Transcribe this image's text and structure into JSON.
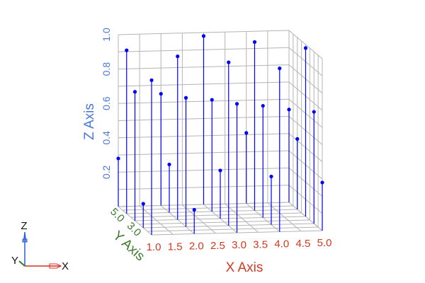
{
  "chart_data": {
    "type": "scatter3d",
    "style": "points with drop lines to floor",
    "xlabel": "X Axis",
    "ylabel": "Y Axis",
    "zlabel": "Z Axis",
    "xlim": [
      1,
      5
    ],
    "ylim": [
      1,
      5
    ],
    "zlim": [
      0,
      1
    ],
    "x_ticks": [
      "1.0",
      "1.5",
      "2.0",
      "2.5",
      "3.0",
      "3.5",
      "4.0",
      "4.5",
      "5.0"
    ],
    "y_ticks": [
      "5.0",
      "3.0"
    ],
    "z_ticks": [
      "0.2",
      "0.4",
      "0.6",
      "0.8",
      "1.0"
    ],
    "grid": true,
    "point_color": "#0000ff",
    "axis_colors": {
      "x": "#d03a22",
      "y": "#3a7a2a",
      "z": "#4a78d8"
    },
    "points": [
      {
        "x": 1,
        "y": 5,
        "z": 0.28
      },
      {
        "x": 1,
        "y": 4,
        "z": 0.95
      },
      {
        "x": 1,
        "y": 3,
        "z": 0.75
      },
      {
        "x": 1,
        "y": 2,
        "z": 0.14
      },
      {
        "x": 1,
        "y": 1,
        "z": 0.9
      },
      {
        "x": 2,
        "y": 5,
        "z": 0.65
      },
      {
        "x": 2,
        "y": 4,
        "z": 0.28
      },
      {
        "x": 2,
        "y": 3,
        "z": 0.95
      },
      {
        "x": 2,
        "y": 2,
        "z": 0.75
      },
      {
        "x": 2,
        "y": 1,
        "z": 0.14
      },
      {
        "x": 3,
        "y": 5,
        "z": 0.98
      },
      {
        "x": 3,
        "y": 4,
        "z": 0.65
      },
      {
        "x": 3,
        "y": 3,
        "z": 0.28
      },
      {
        "x": 3,
        "y": 2,
        "z": 0.95
      },
      {
        "x": 3,
        "y": 1,
        "z": 0.75
      },
      {
        "x": 4,
        "y": 5,
        "z": 0.41
      },
      {
        "x": 4,
        "y": 4,
        "z": 0.98
      },
      {
        "x": 4,
        "y": 3,
        "z": 0.65
      },
      {
        "x": 4,
        "y": 2,
        "z": 0.28
      },
      {
        "x": 4,
        "y": 1,
        "z": 0.95
      },
      {
        "x": 5,
        "y": 5,
        "z": 0.54
      },
      {
        "x": 5,
        "y": 4,
        "z": 0.41
      },
      {
        "x": 5,
        "y": 3,
        "z": 0.98
      },
      {
        "x": 5,
        "y": 2,
        "z": 0.65
      },
      {
        "x": 5,
        "y": 1,
        "z": 0.28
      }
    ]
  },
  "triad": {
    "x_label": "X",
    "y_label": "Y",
    "z_label": "Z"
  }
}
